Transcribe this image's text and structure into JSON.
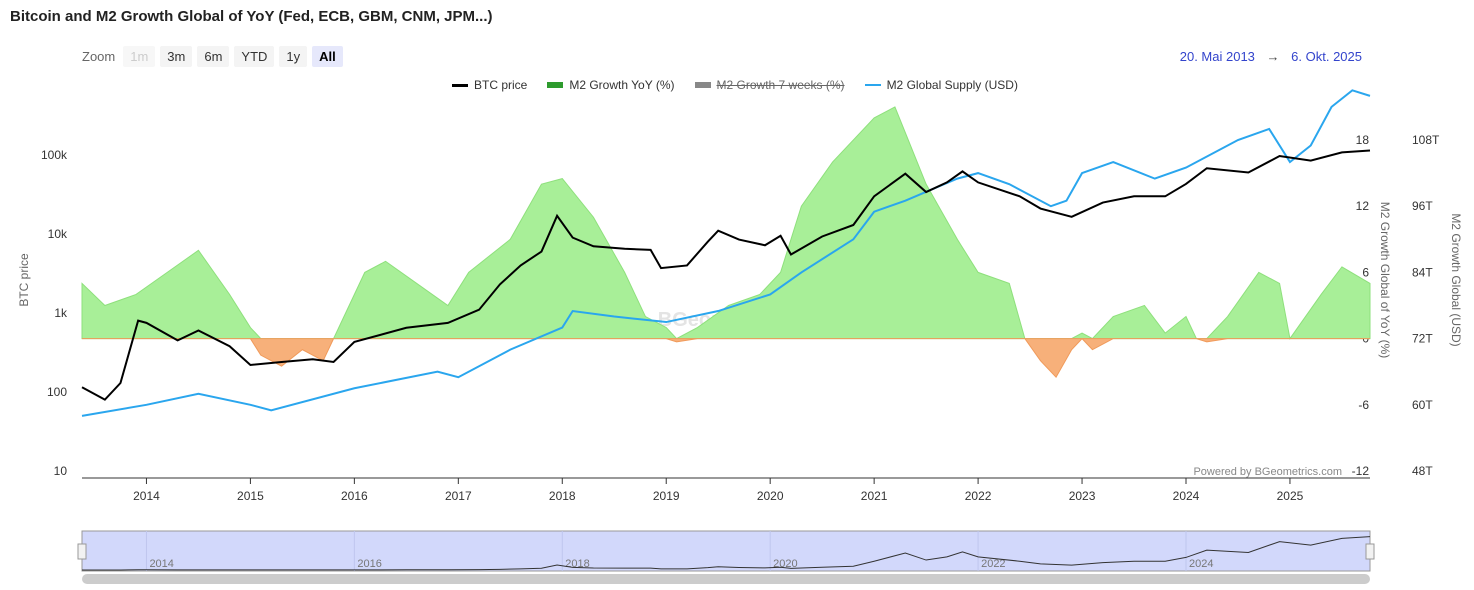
{
  "title": "Bitcoin and M2 Growth Global of YoY (Fed, ECB, GBM, CNM, JPM...)",
  "zoom": {
    "label": "Zoom",
    "buttons": [
      "1m",
      "3m",
      "6m",
      "YTD",
      "1y",
      "All"
    ],
    "selected": "All",
    "disabled": [
      "1m"
    ]
  },
  "range": {
    "from": "20. Mai 2013",
    "arrow": "→",
    "to": "6. Okt. 2025"
  },
  "legend": [
    {
      "name": "BTC price",
      "color": "#000000",
      "visible": true
    },
    {
      "name": "M2 Growth YoY (%)",
      "color": "#2e9b2e",
      "visible": true
    },
    {
      "name": "M2 Growth 7 weeks (%)",
      "color": "#888888",
      "visible": false
    },
    {
      "name": "M2 Global Supply (USD)",
      "color": "#2aa6ee",
      "visible": true
    }
  ],
  "credit": "Powered by BGeometrics.com",
  "watermark": "BGeometrics",
  "navigator": {
    "labels": [
      "2014",
      "2016",
      "2018",
      "2020",
      "2022",
      "2024"
    ]
  },
  "chart_data": {
    "type": "line",
    "title": "Bitcoin and M2 Growth Global of YoY (Fed, ECB, GBM, CNM, JPM...)",
    "xlim": [
      2013.38,
      2025.77
    ],
    "xticks": [
      "2014",
      "2015",
      "2016",
      "2017",
      "2018",
      "2019",
      "2020",
      "2021",
      "2022",
      "2023",
      "2024",
      "2025"
    ],
    "axes": {
      "btc": {
        "label": "BTC price",
        "scale": "log",
        "range": [
          10,
          100000
        ],
        "ticks": [
          "10",
          "100",
          "1k",
          "10k",
          "100k"
        ]
      },
      "yoy": {
        "label": "M2 Growth Global of YoY (%)",
        "range": [
          -12,
          18
        ],
        "ticks": [
          "-12",
          "-6",
          "0",
          "6",
          "12",
          "18"
        ]
      },
      "supply": {
        "label": "M2 Growth Global (USD)",
        "range": [
          48,
          108
        ],
        "ticks": [
          "48T",
          "60T",
          "72T",
          "84T",
          "96T",
          "108T"
        ]
      }
    },
    "series": [
      {
        "name": "BTC price",
        "axis": "btc",
        "x": [
          2013.38,
          2013.6,
          2013.75,
          2013.92,
          2014.0,
          2014.3,
          2014.5,
          2014.8,
          2015.0,
          2015.3,
          2015.6,
          2015.8,
          2016.0,
          2016.5,
          2016.9,
          2017.2,
          2017.4,
          2017.6,
          2017.8,
          2017.95,
          2018.1,
          2018.3,
          2018.6,
          2018.85,
          2018.95,
          2019.2,
          2019.4,
          2019.5,
          2019.7,
          2019.95,
          2020.1,
          2020.2,
          2020.5,
          2020.8,
          2021.0,
          2021.3,
          2021.5,
          2021.7,
          2021.85,
          2022.0,
          2022.4,
          2022.6,
          2022.9,
          2023.2,
          2023.5,
          2023.8,
          2024.0,
          2024.2,
          2024.6,
          2024.9,
          2025.2,
          2025.5,
          2025.77
        ],
        "values": [
          115,
          80,
          130,
          800,
          750,
          450,
          600,
          380,
          220,
          240,
          260,
          240,
          430,
          650,
          750,
          1100,
          2300,
          4000,
          6000,
          17000,
          9000,
          7000,
          6500,
          6300,
          3700,
          4000,
          8000,
          11000,
          8500,
          7200,
          9500,
          5500,
          9300,
          13000,
          30000,
          58000,
          34000,
          45000,
          62000,
          45000,
          30000,
          21000,
          16500,
          25000,
          30000,
          30000,
          43000,
          68000,
          60000,
          97000,
          85000,
          108000,
          114000
        ]
      },
      {
        "name": "M2 Growth YoY (%)",
        "axis": "yoy",
        "x": [
          2013.38,
          2013.6,
          2013.9,
          2014.2,
          2014.5,
          2014.8,
          2015.0,
          2015.1,
          2015.3,
          2015.5,
          2015.7,
          2015.8,
          2016.1,
          2016.3,
          2016.6,
          2016.9,
          2017.1,
          2017.5,
          2017.8,
          2018.0,
          2018.3,
          2018.6,
          2018.8,
          2019.0,
          2019.1,
          2019.3,
          2019.6,
          2019.9,
          2020.1,
          2020.3,
          2020.6,
          2021.0,
          2021.2,
          2021.5,
          2021.8,
          2022.0,
          2022.3,
          2022.45,
          2022.6,
          2022.75,
          2022.9,
          2023.0,
          2023.1,
          2023.3,
          2023.6,
          2023.8,
          2024.0,
          2024.1,
          2024.2,
          2024.4,
          2024.7,
          2024.9,
          2025.0,
          2025.3,
          2025.5,
          2025.77
        ],
        "values": [
          5,
          3,
          4,
          6,
          8,
          4,
          1,
          -1.5,
          -2.5,
          -1,
          -2,
          0,
          6,
          7,
          5,
          3,
          6,
          9,
          14,
          14.5,
          11,
          6,
          2,
          1,
          -0.3,
          1,
          3,
          4,
          6,
          12,
          16,
          20,
          21,
          14,
          9,
          6,
          5,
          0,
          -2,
          -3.5,
          -1,
          0.5,
          -1,
          2,
          3,
          0.5,
          2,
          0,
          -0.3,
          2,
          6,
          5,
          0,
          4,
          6.5,
          5
        ]
      },
      {
        "name": "M2 Global Supply (USD)",
        "axis": "supply",
        "x": [
          2013.38,
          2014.0,
          2014.5,
          2015.0,
          2015.2,
          2016.0,
          2016.8,
          2017.0,
          2017.5,
          2018.0,
          2018.1,
          2018.5,
          2019.0,
          2019.5,
          2020.0,
          2020.3,
          2020.8,
          2021.0,
          2021.3,
          2021.8,
          2022.0,
          2022.3,
          2022.7,
          2022.85,
          2023.0,
          2023.3,
          2023.7,
          2024.0,
          2024.5,
          2024.8,
          2025.0,
          2025.2,
          2025.4,
          2025.6,
          2025.77
        ],
        "values": [
          58,
          60,
          62,
          60,
          59,
          63,
          66,
          65,
          70,
          74,
          77,
          76,
          75,
          77,
          80,
          84,
          90,
          95,
          97,
          101,
          102,
          100,
          96,
          97,
          102,
          104,
          101,
          103,
          108,
          110,
          104,
          107,
          114,
          117,
          116
        ]
      }
    ]
  }
}
